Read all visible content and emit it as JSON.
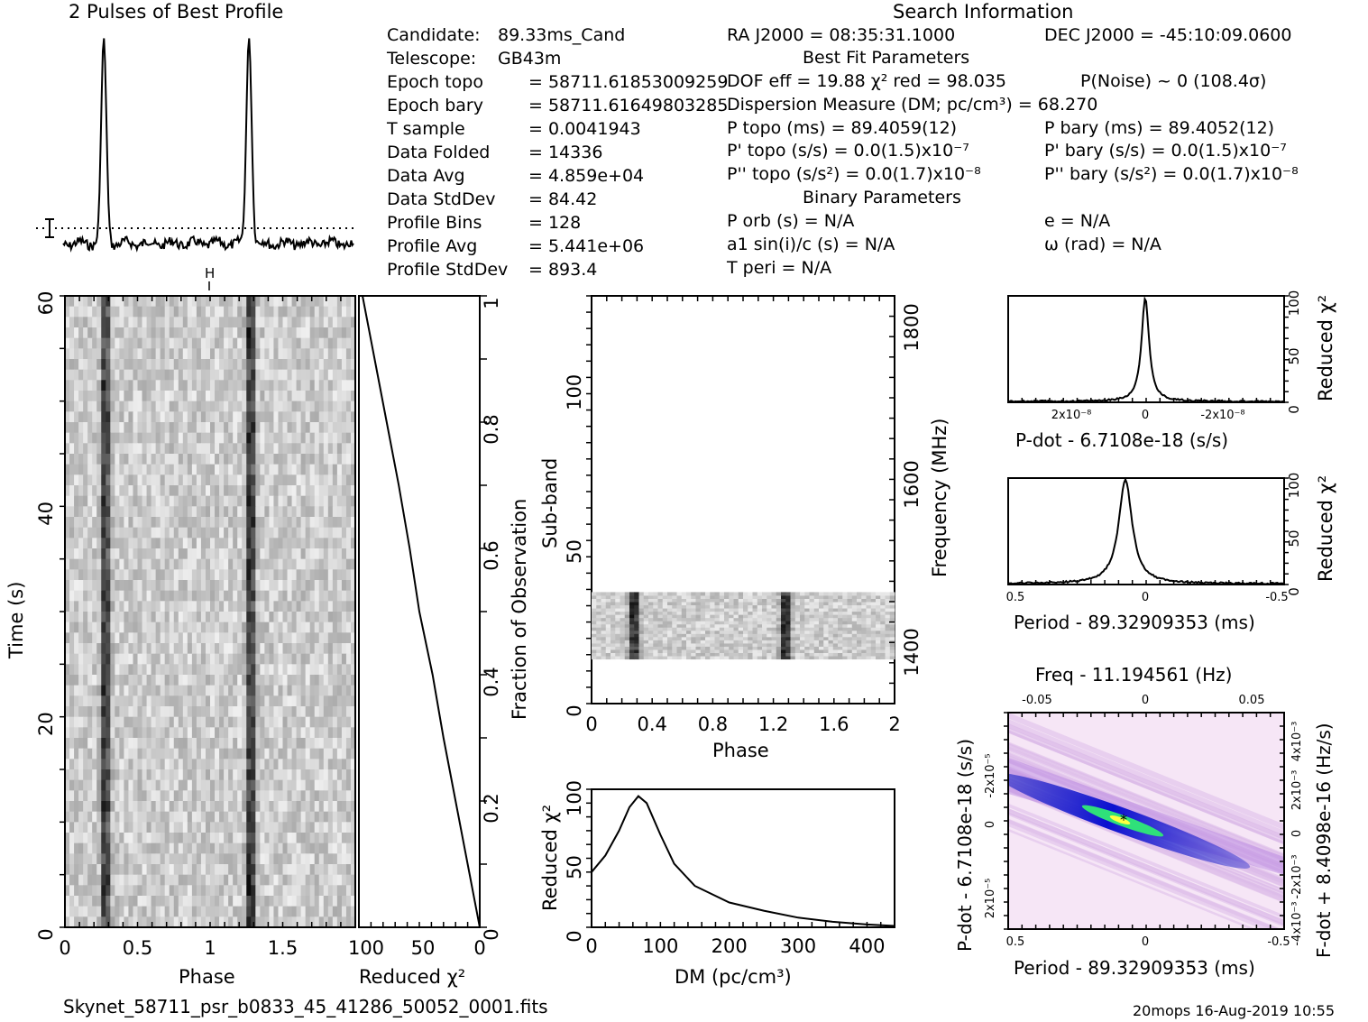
{
  "header": {
    "profile_title": "2 Pulses of Best Profile",
    "search_title": "Search Information",
    "best_fit_title": "Best Fit Parameters",
    "binary_title": "Binary Parameters",
    "filename": "Skynet_58711_psr_b0833_45_41286_50052_0001.fits",
    "footer_stamp": "20mops 16-Aug-2019 10:55"
  },
  "info_left": [
    {
      "label": "Candidate:",
      "value": "89.33ms_Cand"
    },
    {
      "label": "Telescope:",
      "value": "GB43m"
    },
    {
      "label": "Epoch topo",
      "value": "= 58711.61853009259"
    },
    {
      "label": "Epoch bary",
      "value": "= 58711.61649803285"
    },
    {
      "label": "T sample",
      "value": "= 0.0041943"
    },
    {
      "label": "Data Folded",
      "value": "= 14336"
    },
    {
      "label": "Data Avg",
      "value": "= 4.859e+04"
    },
    {
      "label": "Data StdDev",
      "value": "= 84.42"
    },
    {
      "label": "Profile Bins",
      "value": "= 128"
    },
    {
      "label": "Profile Avg",
      "value": "= 5.441e+06"
    },
    {
      "label": "Profile StdDev",
      "value": "= 893.4"
    }
  ],
  "info_mid": [
    "RA J2000 = 08:35:31.1000",
    "DOF eff = 19.88  χ² red = 98.035",
    "Dispersion Measure (DM; pc/cm³) = 68.270",
    "P topo (ms) = 89.4059(12)",
    "P' topo (s/s) = 0.0(1.5)x10⁻⁷",
    "P'' topo (s/s²) = 0.0(1.7)x10⁻⁸",
    "P orb (s) = N/A",
    "a1 sin(i)/c (s) = N/A",
    "T peri = N/A"
  ],
  "info_right": [
    "DEC J2000 = -45:10:09.0600",
    "P(Noise) ~ 0   (108.4σ)",
    "P bary (ms) = 89.4052(12)",
    "P' bary (s/s) = 0.0(1.5)x10⁻⁷",
    "P'' bary (s/s²) = 0.0(1.7)x10⁻⁸",
    "e = N/A",
    "ω (rad) = N/A"
  ],
  "labels": {
    "time_axis": "Time (s)",
    "phase_axis": "Phase",
    "reduced_chi2": "Reduced χ²",
    "fraction_obs": "Fraction of Observation",
    "subband": "Sub-band",
    "frequency": "Frequency (MHz)",
    "dm_axis": "DM (pc/cm³)",
    "pdot_axis": "P-dot - 6.7108e-18 (s/s)",
    "period_axis": "Period - 89.32909353 (ms)",
    "freq_axis": "Freq - 11.194561 (Hz)",
    "pdot_vert": "P-dot - 6.7108e-18 (s/s)",
    "fdot_vert": "F-dot + 8.4098e-16 (Hz/s)",
    "h_marker": "H"
  },
  "colors": {
    "background": "#ffffff",
    "ink": "#000000",
    "ppdot_low": "#f6e6f6",
    "ppdot_mid": "#1a2ad8",
    "ppdot_high": "#2fe07a"
  },
  "chart_data": [
    {
      "type": "line",
      "name": "pulse_profile",
      "title": "2 Pulses of Best Profile",
      "x": "phase 0-2 (two rotations)",
      "peaks_phase": [
        0.28,
        1.28
      ],
      "peak_level": 1.0,
      "baseline_level": 0.0
    },
    {
      "type": "heatmap",
      "name": "time_vs_phase",
      "xlabel": "Phase",
      "ylabel": "Time (s)",
      "xlim": [
        0,
        2
      ],
      "ylim": [
        0,
        60
      ],
      "xticks": [
        "0",
        "0.5",
        "1",
        "1.5"
      ],
      "yticks": [
        "0",
        "20",
        "40",
        "60"
      ],
      "pulse_phase": [
        0.28,
        1.28
      ]
    },
    {
      "type": "line",
      "name": "chi2_vs_fraction",
      "xlabel": "Reduced χ²",
      "xlim": [
        100,
        0
      ],
      "right_axis": "Fraction of Observation",
      "right_ticks": [
        "0",
        "0.2",
        "0.4",
        "0.6",
        "0.8",
        "1"
      ],
      "x_ticks": [
        "100",
        "50",
        "0"
      ],
      "fraction": [
        0,
        0.1,
        0.2,
        0.3,
        0.4,
        0.5,
        0.6,
        0.7,
        0.8,
        0.9,
        1.0
      ],
      "chi2": [
        0,
        10,
        20,
        30,
        39,
        50,
        58,
        67,
        77,
        87,
        97
      ]
    },
    {
      "type": "heatmap",
      "name": "subband_vs_phase",
      "xlabel": "Phase",
      "ylabel": "Sub-band",
      "xlim": [
        0,
        2
      ],
      "ylim": [
        0,
        128
      ],
      "xticks": [
        "0",
        "0.4",
        "0.8",
        "1.2",
        "1.6",
        "2"
      ],
      "yticks": [
        "0",
        "50",
        "100"
      ],
      "freq_ticks": [
        "1400",
        "1600",
        "1800"
      ],
      "active_subbands": [
        14,
        35
      ],
      "pulse_phase": [
        0.28,
        1.28
      ]
    },
    {
      "type": "line",
      "name": "dm_curve",
      "xlabel": "DM (pc/cm³)",
      "ylabel": "Reduced χ²",
      "xlim": [
        0,
        440
      ],
      "ylim": [
        0,
        100
      ],
      "xticks": [
        "0",
        "100",
        "200",
        "300",
        "400"
      ],
      "yticks": [
        "0",
        "50",
        "100"
      ],
      "x": [
        0,
        20,
        40,
        55,
        68,
        80,
        100,
        120,
        150,
        200,
        250,
        300,
        350,
        400,
        440
      ],
      "y": [
        40,
        52,
        70,
        87,
        95,
        90,
        67,
        46,
        30,
        18,
        12,
        7,
        4,
        2,
        1
      ]
    },
    {
      "type": "line",
      "name": "pdot_curve",
      "xlabel": "P-dot - 6.7108e-18 (s/s)",
      "ylabel": "Reduced χ²",
      "xticks": [
        "2x10⁻⁸",
        "0",
        "-2x10⁻⁸"
      ],
      "yticks": [
        "0",
        "50",
        "100"
      ],
      "peak_at": 0,
      "peak_value": 98
    },
    {
      "type": "line",
      "name": "period_curve",
      "xlabel": "Period - 89.32909353 (ms)",
      "ylabel": "Reduced χ²",
      "xticks": [
        "0.5",
        "0",
        "-0.5"
      ],
      "yticks": [
        "0",
        "50",
        "100"
      ],
      "peak_at": 0.08,
      "peak_value": 98
    },
    {
      "type": "heatmap",
      "name": "p_pdot_plane",
      "xlabel": "Period - 89.32909353 (ms)",
      "top_label": "Freq - 11.194561 (Hz)",
      "xticks": [
        "0.5",
        "0",
        "-0.5"
      ],
      "top_ticks": [
        "-0.05",
        "0",
        "0.05"
      ],
      "left_ticks": [
        "-2x10⁻⁵",
        "0",
        "2x10⁻⁵"
      ],
      "right_ticks": [
        "4x10⁻³",
        "2x10⁻³",
        "0",
        "-2x10⁻³",
        "-4x10⁻³"
      ]
    }
  ]
}
